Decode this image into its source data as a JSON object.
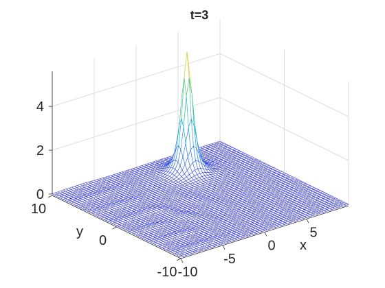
{
  "chart_data": {
    "type": "surface",
    "title": "t=3",
    "xlabel": "x",
    "ylabel": "y",
    "zlabel": "",
    "xlim": [
      -10,
      10
    ],
    "ylim": [
      -10,
      10
    ],
    "zlim": [
      0,
      5.6
    ],
    "x_ticks": [
      -10,
      -5,
      0,
      5
    ],
    "y_ticks": [
      -10,
      0,
      10
    ],
    "z_ticks": [
      0,
      2,
      4
    ],
    "grid": true,
    "colormap": "parula",
    "peak": {
      "x": 3,
      "y": 6,
      "z": 5.5
    },
    "colors": {
      "low": "#3b3fd8",
      "mid": "#20b6c4",
      "high": "#f2d23a"
    }
  }
}
